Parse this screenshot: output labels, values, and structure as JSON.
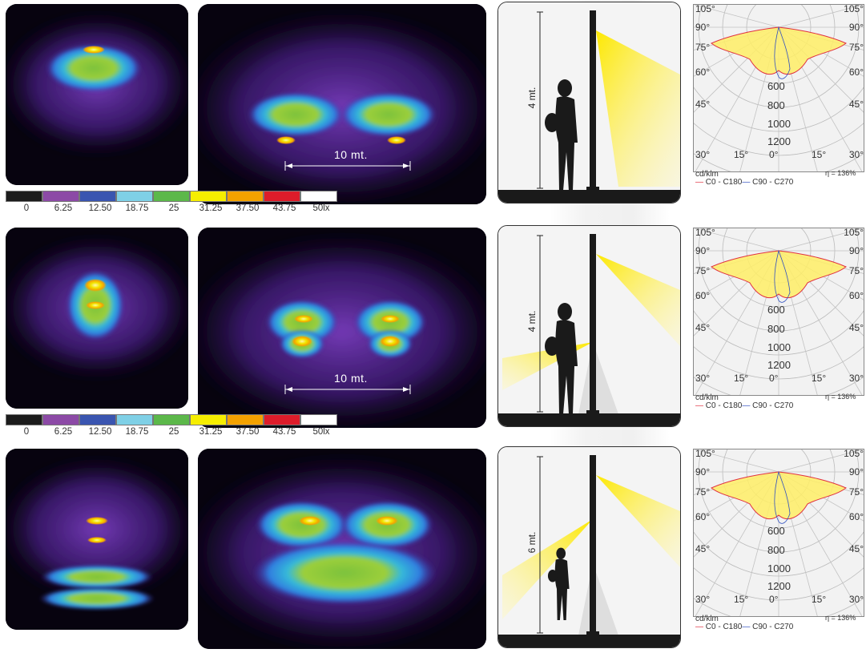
{
  "rows": [
    {
      "distance_label": "10 mt.",
      "height_label": "4 mt.",
      "variant": "a"
    },
    {
      "distance_label": "10 mt.",
      "height_label": "4 mt.",
      "variant": "b"
    },
    {
      "distance_label": "",
      "height_label": "6 mt.",
      "variant": "c"
    }
  ],
  "polar": {
    "angle_labels_left": [
      "105°",
      "90°",
      "75°",
      "60°",
      "45°",
      "30°"
    ],
    "angle_labels_right": [
      "105°",
      "90°",
      "75°",
      "60°",
      "45°",
      "30°"
    ],
    "angle_labels_bottom": [
      "15°",
      "0°",
      "15°"
    ],
    "radial_values": [
      "600",
      "800",
      "1000",
      "1200"
    ],
    "unit": "cd/klm",
    "efficiency": "η = 136%",
    "legend_c0": "C0 - C180",
    "legend_c90": "C90 - C270",
    "color_c0": "#e03040",
    "color_c90": "#3050c0"
  },
  "scale": {
    "values": [
      "0",
      "6.25",
      "12.50",
      "18.75",
      "25",
      "31.25",
      "37.50",
      "43.75",
      "50lx"
    ],
    "colors": [
      "#1c1c1c",
      "#8c4aa6",
      "#3a55b0",
      "#7fd0e6",
      "#5cb84a",
      "#f6ee00",
      "#f4a200",
      "#dd1c2a",
      "#ffffff"
    ]
  },
  "colors": {
    "heat_dark": "#07030f",
    "purple": "#7a3dbf",
    "blue": "#2f7fe0",
    "cyan": "#35b9d9",
    "green": "#7cc23c",
    "yellow": "#f2e600",
    "orange": "#f5a400",
    "beam": "#fde800",
    "pole": "#1a1a1a"
  }
}
